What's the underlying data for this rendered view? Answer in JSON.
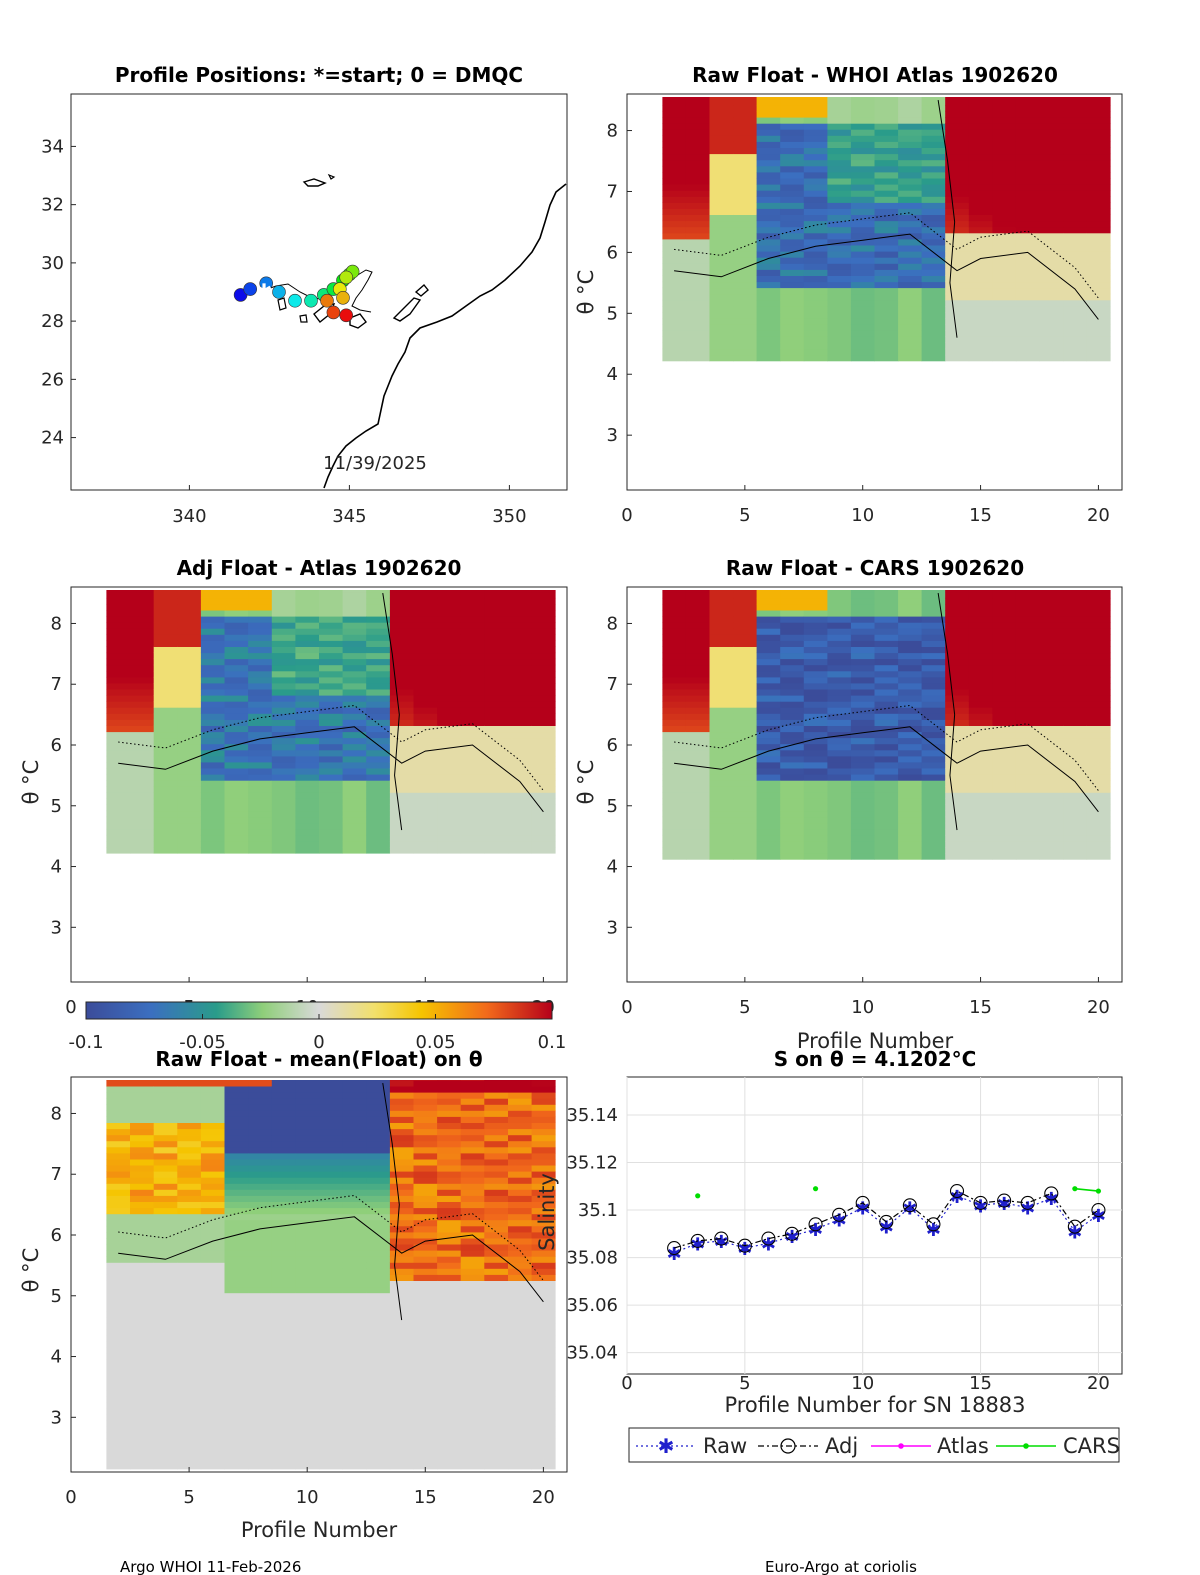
{
  "footer": {
    "left": "Argo WHOI 11-Feb-2026",
    "right": "Euro-Argo at coriolis"
  },
  "colorbar": {
    "ticks": [
      "-0.1",
      "-0.05",
      "0",
      "0.05",
      "0.1"
    ]
  },
  "panels": {
    "map": {
      "title": "Profile Positions: *=start; 0 = DMQC",
      "date": "11/39/2025",
      "xticks": [
        "340",
        "345",
        "350"
      ],
      "yticks": [
        "34",
        "32",
        "30",
        "28",
        "26",
        "24"
      ]
    },
    "p1": {
      "title": "Raw Float - WHOI Atlas  1902620"
    },
    "p2": {
      "title": "Adj Float - Atlas  1902620"
    },
    "p3": {
      "title": "Raw Float - CARS  1902620"
    },
    "p4": {
      "title": "Raw Float - mean(Float) on θ",
      "xlabel": "Profile Number"
    },
    "sal": {
      "title": "S on θ = 4.1202°C",
      "xlabel": "Profile Number for SN 18883",
      "ylabel": "Salinity"
    },
    "p3xlabel": "Profile Number",
    "thetaLabel": "θ °C",
    "sectionYticks": [
      "8",
      "7",
      "6",
      "5",
      "4",
      "3"
    ],
    "sectionXticks": [
      "0",
      "5",
      "10",
      "15",
      "20"
    ]
  },
  "legend": {
    "raw": "Raw",
    "adj": "Adj",
    "atlas": "Atlas",
    "cars": "CARS"
  },
  "chart_data": [
    {
      "type": "scatter",
      "name": "profile-positions",
      "title": "Profile Positions: *=start; 0 = DMQC",
      "xlim": [
        336.3,
        351.8
      ],
      "ylim": [
        22.2,
        35.8
      ],
      "x": [
        341.6,
        341.9,
        342.4,
        342.8,
        343.3,
        343.8,
        344.2,
        344.5,
        344.8,
        345.0,
        345.1,
        344.9,
        344.7,
        344.8,
        344.3,
        344.5,
        344.9
      ],
      "y": [
        28.9,
        29.1,
        29.3,
        29.0,
        28.7,
        28.7,
        28.9,
        29.1,
        29.4,
        29.6,
        29.7,
        29.5,
        29.1,
        28.8,
        28.7,
        28.3,
        28.2
      ]
    },
    {
      "type": "heatmap",
      "name": "theta-sections",
      "xlim": [
        0,
        21
      ],
      "ylim": [
        2.1,
        8.6
      ],
      "colorbar_range": [
        -0.1,
        0.1
      ]
    },
    {
      "type": "line",
      "title": "S on θ = 4.1202°C",
      "xlabel": "Profile Number for SN 18883",
      "ylabel": "Salinity",
      "xlim": [
        0,
        21
      ],
      "ylim": [
        35.031,
        35.156
      ],
      "series": [
        {
          "name": "Raw",
          "x": [
            2,
            3,
            4,
            5,
            6,
            7,
            8,
            9,
            10,
            11,
            12,
            13,
            14,
            15,
            16,
            17,
            18,
            19,
            20
          ],
          "values": [
            35.082,
            35.086,
            35.087,
            35.084,
            35.086,
            35.089,
            35.092,
            35.096,
            35.101,
            35.093,
            35.101,
            35.092,
            35.106,
            35.102,
            35.103,
            35.101,
            35.105,
            35.091,
            35.098
          ]
        },
        {
          "name": "Adj",
          "x": [
            2,
            3,
            4,
            5,
            6,
            7,
            8,
            9,
            10,
            11,
            12,
            13,
            14,
            15,
            16,
            17,
            18,
            19,
            20
          ],
          "values": [
            35.084,
            35.087,
            35.088,
            35.085,
            35.088,
            35.09,
            35.094,
            35.098,
            35.103,
            35.095,
            35.102,
            35.094,
            35.108,
            35.103,
            35.104,
            35.103,
            35.107,
            35.093,
            35.1
          ]
        },
        {
          "name": "Atlas",
          "x": [],
          "values": []
        },
        {
          "name": "CARS",
          "x": [
            3,
            8,
            19,
            20
          ],
          "values": [
            35.106,
            35.109,
            35.109,
            35.108
          ]
        }
      ]
    }
  ]
}
